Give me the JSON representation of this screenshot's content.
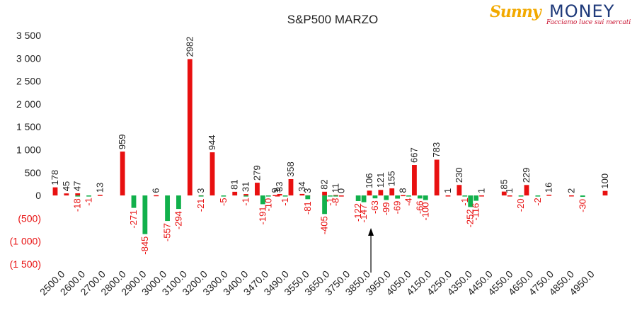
{
  "logo": {
    "brand_left": "Sunny",
    "brand_right": "MONEY",
    "tagline": "Facciamo luce sui mercati"
  },
  "colors": {
    "positive": "#e81010",
    "negative": "#11b04b",
    "tick_negative": "#e81010",
    "text": "#222222",
    "grid": "#d9d9d9",
    "arrow": "#000000"
  },
  "chart_data": {
    "type": "bar",
    "title": "S&P500 MARZO",
    "xlabel": "",
    "ylabel": "",
    "ylim": [
      -1500,
      3500
    ],
    "ytick_values": [
      3500,
      3000,
      2500,
      2000,
      1500,
      1000,
      500,
      0,
      -500,
      -1000,
      -1500
    ],
    "ytick_labels": [
      "3 500",
      "3 000",
      "2 500",
      "2 000",
      "1 500",
      "1 000",
      "500",
      "0",
      "(500)",
      "(1 000)",
      "(1 500)"
    ],
    "grid": false,
    "legend": "none",
    "x_tick_labels": [
      "2500.0",
      "2600.0",
      "2700.0",
      "2800.0",
      "2900.0",
      "3000.0",
      "3100.0",
      "3200.0",
      "3300.0",
      "3400.0",
      "3470.0",
      "3490.0",
      "3550.0",
      "3650.0",
      "3750.0",
      "3850.0",
      "3950.0",
      "4050.0",
      "4150.0",
      "4250.0",
      "4350.0",
      "4450.0",
      "4550.0",
      "4650.0",
      "4750.0",
      "4850.0",
      "4950.0"
    ],
    "annotations": [
      "arrow at 3850.0"
    ],
    "series": [
      {
        "name": "Calls",
        "values": [
          {
            "x": 2500,
            "y": 178
          },
          {
            "x": 2550,
            "y": 45
          },
          {
            "x": 2600,
            "y": 47
          },
          {
            "x": 2700,
            "y": 13
          },
          {
            "x": 2800,
            "y": 959
          },
          {
            "x": 2950,
            "y": 6
          },
          {
            "x": 3100,
            "y": 2982
          },
          {
            "x": 3150,
            "y": 3
          },
          {
            "x": 3200,
            "y": 944
          },
          {
            "x": 3300,
            "y": 81
          },
          {
            "x": 3350,
            "y": 31
          },
          {
            "x": 3400,
            "y": 279
          },
          {
            "x": 3480,
            "y": 9
          },
          {
            "x": 3490,
            "y": 1
          },
          {
            "x": 3500,
            "y": 33
          },
          {
            "x": 3550,
            "y": 358
          },
          {
            "x": 3600,
            "y": 34
          },
          {
            "x": 3625,
            "y": 3
          },
          {
            "x": 3700,
            "y": 82
          },
          {
            "x": 3750,
            "y": 11
          },
          {
            "x": 3775,
            "y": 0
          },
          {
            "x": 3900,
            "y": 106
          },
          {
            "x": 3950,
            "y": 121
          },
          {
            "x": 4000,
            "y": 155
          },
          {
            "x": 4050,
            "y": 8
          },
          {
            "x": 4100,
            "y": 667
          },
          {
            "x": 4200,
            "y": 783
          },
          {
            "x": 4250,
            "y": 1
          },
          {
            "x": 4300,
            "y": 230
          },
          {
            "x": 4400,
            "y": 1
          },
          {
            "x": 4500,
            "y": 85
          },
          {
            "x": 4525,
            "y": 1
          },
          {
            "x": 4600,
            "y": 229
          },
          {
            "x": 4700,
            "y": 16
          },
          {
            "x": 4800,
            "y": 2
          },
          {
            "x": 4950,
            "y": 100
          }
        ]
      },
      {
        "name": "Puts",
        "values": [
          {
            "x": 2600,
            "y": -18
          },
          {
            "x": 2650,
            "y": -1
          },
          {
            "x": 2850,
            "y": -271
          },
          {
            "x": 2900,
            "y": -845
          },
          {
            "x": 3000,
            "y": -557
          },
          {
            "x": 3050,
            "y": -294
          },
          {
            "x": 3150,
            "y": -21
          },
          {
            "x": 3250,
            "y": -5
          },
          {
            "x": 3350,
            "y": -1
          },
          {
            "x": 3425,
            "y": -191
          },
          {
            "x": 3450,
            "y": -10
          },
          {
            "x": 3525,
            "y": -1
          },
          {
            "x": 3625,
            "y": -81
          },
          {
            "x": 3700,
            "y": -405
          },
          {
            "x": 3725,
            "y": -1
          },
          {
            "x": 3750,
            "y": -8
          },
          {
            "x": 3850,
            "y": -122
          },
          {
            "x": 3875,
            "y": -147
          },
          {
            "x": 3925,
            "y": -63
          },
          {
            "x": 3975,
            "y": -99
          },
          {
            "x": 4025,
            "y": -69
          },
          {
            "x": 4075,
            "y": -4
          },
          {
            "x": 4125,
            "y": -66
          },
          {
            "x": 4150,
            "y": -100
          },
          {
            "x": 4325,
            "y": -1
          },
          {
            "x": 4350,
            "y": -252
          },
          {
            "x": 4375,
            "y": -116
          },
          {
            "x": 4575,
            "y": -20
          },
          {
            "x": 4650,
            "y": -2
          },
          {
            "x": 4850,
            "y": -30
          }
        ]
      }
    ]
  }
}
